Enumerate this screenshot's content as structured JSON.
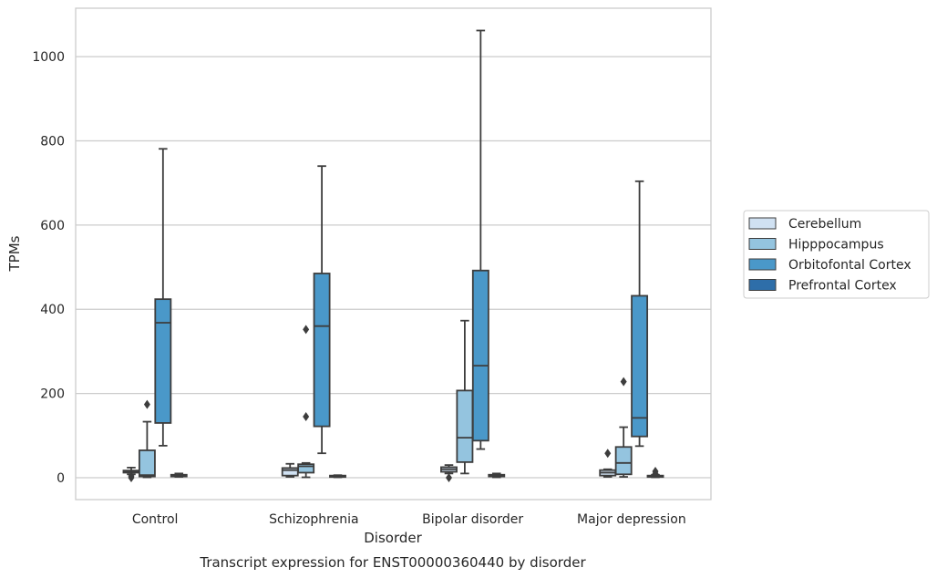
{
  "chart_data": {
    "type": "box",
    "title": "Transcript expression for ENST00000360440 by disorder",
    "xlabel": "Disorder",
    "ylabel": "TPMs",
    "ylim": [
      -52,
      1115
    ],
    "yticks": [
      0,
      200,
      400,
      600,
      800,
      1000
    ],
    "grid": true,
    "legend_position": "right",
    "categories": [
      "Control",
      "Schizophrenia",
      "Bipolar disorder",
      "Major depression"
    ],
    "series": [
      {
        "name": "Cerebellum",
        "color": "#d0e1f2",
        "boxes": [
          {
            "whislo": 8,
            "q1": 12,
            "med": 15,
            "q3": 17,
            "whishi": 24,
            "fliers": [
              0,
              4
            ]
          },
          {
            "whislo": 2,
            "q1": 5,
            "med": 18,
            "q3": 23,
            "whishi": 33,
            "fliers": []
          },
          {
            "whislo": 10,
            "q1": 14,
            "med": 20,
            "q3": 25,
            "whishi": 30,
            "fliers": [
              0
            ]
          },
          {
            "whislo": 2,
            "q1": 5,
            "med": 12,
            "q3": 18,
            "whishi": 20,
            "fliers": [
              58
            ]
          }
        ]
      },
      {
        "name": "Hipppocampus",
        "color": "#94c4df",
        "boxes": [
          {
            "whislo": 1,
            "q1": 3,
            "med": 6,
            "q3": 65,
            "whishi": 133,
            "fliers": [
              174
            ]
          },
          {
            "whislo": 1,
            "q1": 12,
            "med": 27,
            "q3": 32,
            "whishi": 35,
            "fliers": [
              145,
              352
            ]
          },
          {
            "whislo": 10,
            "q1": 37,
            "med": 95,
            "q3": 207,
            "whishi": 373,
            "fliers": []
          },
          {
            "whislo": 2,
            "q1": 8,
            "med": 35,
            "q3": 73,
            "whishi": 120,
            "fliers": [
              228
            ]
          }
        ]
      },
      {
        "name": "Orbitofontal Cortex",
        "color": "#4a98c9",
        "boxes": [
          {
            "whislo": 76,
            "q1": 130,
            "med": 368,
            "q3": 424,
            "whishi": 781,
            "fliers": []
          },
          {
            "whislo": 58,
            "q1": 122,
            "med": 360,
            "q3": 485,
            "whishi": 740,
            "fliers": []
          },
          {
            "whislo": 68,
            "q1": 88,
            "med": 266,
            "q3": 492,
            "whishi": 1062,
            "fliers": []
          },
          {
            "whislo": 75,
            "q1": 98,
            "med": 142,
            "q3": 432,
            "whishi": 704,
            "fliers": []
          }
        ]
      },
      {
        "name": "Prefrontal Cortex",
        "color": "#2e6ea9",
        "boxes": [
          {
            "whislo": 2,
            "q1": 3,
            "med": 5,
            "q3": 7,
            "whishi": 10,
            "fliers": []
          },
          {
            "whislo": 1,
            "q1": 2,
            "med": 3,
            "q3": 5,
            "whishi": 6,
            "fliers": []
          },
          {
            "whislo": 1,
            "q1": 3,
            "med": 5,
            "q3": 7,
            "whishi": 10,
            "fliers": []
          },
          {
            "whislo": 1,
            "q1": 2,
            "med": 3,
            "q3": 5,
            "whishi": 7,
            "fliers": [
              10,
              15
            ]
          }
        ]
      }
    ]
  }
}
